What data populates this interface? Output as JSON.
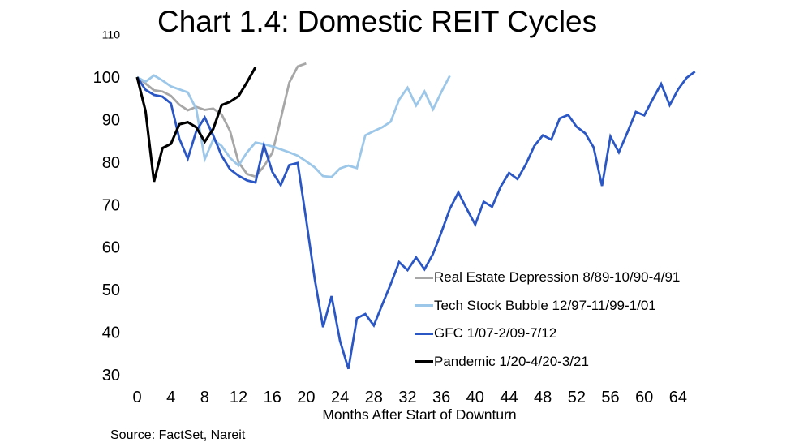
{
  "page": {
    "title": "Chart 1.4: Domestic REIT Cycles",
    "source_note": "Source: FactSet, Nareit"
  },
  "chart_data": {
    "type": "line",
    "title": "Chart 1.4: Domestic REIT Cycles",
    "xlabel": "Months After Start of Downturn",
    "ylabel": "",
    "x_unit": "months",
    "xticks": [
      0,
      4,
      8,
      12,
      16,
      20,
      24,
      28,
      32,
      36,
      40,
      44,
      48,
      52,
      56,
      60,
      64
    ],
    "yticks": [
      110,
      100,
      90,
      80,
      70,
      60,
      50,
      40,
      30
    ],
    "xlim": [
      0,
      68
    ],
    "ylim": [
      30,
      110
    ],
    "grid": false,
    "legend_position": "inside-right-lower",
    "series": [
      {
        "name": "Real Estate Depression 8/89-10/90-4/91",
        "color": "#a7a7a7",
        "start_month": 0,
        "values": [
          100,
          98.5,
          96.9,
          96.6,
          95.6,
          93.5,
          92.2,
          93,
          92.3,
          92.6,
          91.2,
          87.3,
          80,
          77.2,
          76.6,
          79,
          82.2,
          90.2,
          98.7,
          102.5,
          103.2
        ]
      },
      {
        "name": "Tech Stock Bubble 12/97-11/99-1/01",
        "color": "#9cc7e8",
        "start_month": 0,
        "values": [
          100,
          98.9,
          100.4,
          99.2,
          97.8,
          97.1,
          96.4,
          92.5,
          80.7,
          85.3,
          83.8,
          81,
          79.2,
          82.3,
          84.6,
          84.2,
          83.7,
          83,
          82.3,
          81.5,
          80.2,
          78.8,
          76.7,
          76.5,
          78.5,
          79.2,
          78.6,
          86.3,
          87.3,
          88.2,
          89.5,
          94.7,
          97.5,
          93.3,
          96.6,
          92.4,
          96.5,
          100.3
        ]
      },
      {
        "name": "GFC 1/07-2/09-7/12",
        "color": "#2b57c5",
        "start_month": 0,
        "values": [
          100,
          97,
          95.8,
          95.4,
          93.8,
          85.5,
          80.8,
          87.3,
          90.5,
          86.3,
          81.5,
          78.3,
          76.8,
          75.7,
          75.2,
          84,
          77.7,
          74.6,
          79.3,
          79.8,
          66.5,
          52.7,
          41.2,
          48.5,
          38,
          31.4,
          43.3,
          44.3,
          41.6,
          46.5,
          51.3,
          56.5,
          54.6,
          57.6,
          54.8,
          58.4,
          63.5,
          69,
          72.9,
          69,
          65.3,
          70.7,
          69.5,
          74.2,
          77.5,
          76,
          79.5,
          83.8,
          86.3,
          85.3,
          90.3,
          91.1,
          88.3,
          86.8,
          83.5,
          74.4,
          86,
          82.3,
          87,
          91.8,
          91,
          94.8,
          98.4,
          93.4,
          97.1,
          99.8,
          101.3
        ]
      },
      {
        "name": "Pandemic 1/20-4/20-3/21",
        "color": "#000000",
        "start_month": 0,
        "values": [
          100,
          92,
          75.4,
          83.3,
          84.3,
          88.9,
          89.4,
          88.2,
          84.8,
          87.8,
          93.4,
          94.2,
          95.5,
          98.8,
          102.3
        ]
      }
    ]
  }
}
